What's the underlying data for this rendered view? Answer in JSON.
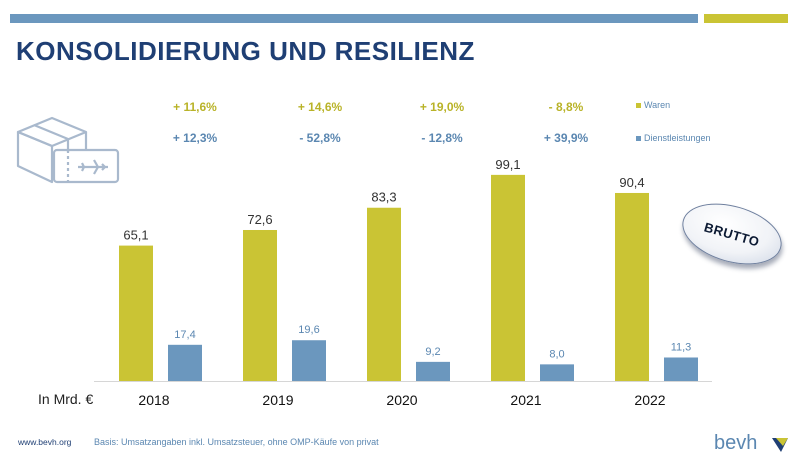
{
  "title": "KONSOLIDIERUNG UND RESILIENZ",
  "colors": {
    "waren": "#cac434",
    "dienst": "#6b97be",
    "title": "#1f3f74",
    "waren_text": "#b9b328",
    "dienst_text": "#5b87b1"
  },
  "legend": {
    "waren": "Waren",
    "dienst": "Dienstleistungen"
  },
  "badge": "BRUTTO",
  "ylabel": "In Mrd. €",
  "footer": {
    "url": "www.bevh.org",
    "note": "Basis: Umsatzangaben inkl. Umsatzsteuer, ohne OMP-Käufe von privat"
  },
  "logo": "bevh",
  "icons": {
    "product": "package-ticket-icon",
    "logo_mark": "bevh-logo-mark-icon"
  },
  "chart_data": {
    "type": "bar",
    "categories": [
      "2018",
      "2019",
      "2020",
      "2021",
      "2022"
    ],
    "series": [
      {
        "name": "Waren",
        "values": [
          65.1,
          72.6,
          83.3,
          99.1,
          90.4
        ],
        "labels": [
          "65,1",
          "72,6",
          "83,3",
          "99,1",
          "90,4"
        ]
      },
      {
        "name": "Dienstleistungen",
        "values": [
          17.4,
          19.6,
          9.2,
          8.0,
          11.3
        ],
        "labels": [
          "17,4",
          "19,6",
          "9,2",
          "8,0",
          "11,3"
        ]
      }
    ],
    "growth_labels": {
      "Waren": [
        "+ 11,6%",
        "+ 14,6%",
        "+ 19,0%",
        "- 8,8%"
      ],
      "Dienstleistungen": [
        "+ 12,3%",
        "- 52,8%",
        "- 12,8%",
        "+ 39,9%"
      ]
    },
    "ylabel": "In Mrd. €",
    "ylim": [
      0,
      100
    ],
    "grid": false,
    "legend_position": "top-right"
  }
}
